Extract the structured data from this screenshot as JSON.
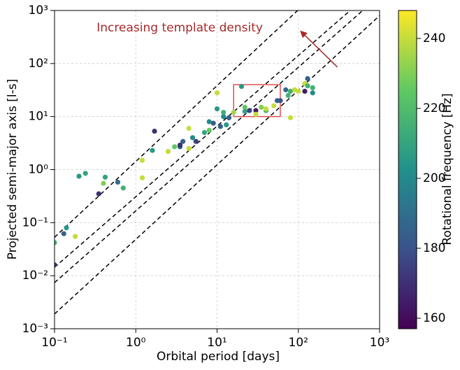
{
  "chart_data": {
    "type": "scatter",
    "xlabel": "Orbital period [days]",
    "ylabel": "Projected semi-major axis [l-s]",
    "xscale": "log",
    "yscale": "log",
    "xlim": [
      0.1,
      1000
    ],
    "ylim": [
      0.001,
      1000
    ],
    "xticks": [
      {
        "value": 0.1,
        "label": "10⁻¹"
      },
      {
        "value": 1,
        "label": "10⁰"
      },
      {
        "value": 10,
        "label": "10¹"
      },
      {
        "value": 100,
        "label": "10²"
      },
      {
        "value": 1000,
        "label": "10³"
      }
    ],
    "yticks": [
      {
        "value": 0.001,
        "label": "10⁻³"
      },
      {
        "value": 0.01,
        "label": "10⁻²"
      },
      {
        "value": 0.1,
        "label": "10⁻¹"
      },
      {
        "value": 1,
        "label": "10⁰"
      },
      {
        "value": 10,
        "label": "10¹"
      },
      {
        "value": 100,
        "label": "10²"
      },
      {
        "value": 1000,
        "label": "10³"
      }
    ],
    "grid": true,
    "colorbar": {
      "label": "Rotational frequency [Hz]",
      "lim": [
        157,
        248
      ],
      "ticks": [
        160,
        180,
        200,
        220,
        240
      ],
      "colormap": [
        "#440154",
        "#3b528b",
        "#21918c",
        "#5ec962",
        "#fde725"
      ]
    },
    "series": [
      {
        "x": [
          0.1,
          0.1,
          0.13,
          0.14,
          0.18,
          0.2,
          0.24,
          0.35,
          0.4,
          0.42,
          0.6,
          0.7,
          1.2,
          1.2,
          1.7,
          1.6,
          2.5,
          3,
          3.5,
          3.8,
          3.5,
          4.5,
          4.5,
          5,
          5.5,
          7,
          8,
          8,
          9,
          10,
          10,
          11,
          12,
          12,
          13,
          14,
          16,
          20,
          22,
          22,
          25,
          30,
          30,
          35,
          40,
          40,
          50,
          55,
          60,
          70,
          75,
          80,
          80,
          90,
          100,
          120,
          120,
          130,
          130,
          150,
          150
        ],
        "y": [
          0.042,
          0.016,
          0.062,
          0.08,
          0.055,
          0.75,
          0.85,
          0.35,
          0.55,
          0.72,
          0.58,
          0.45,
          1.5,
          0.7,
          5.3,
          2.3,
          2.2,
          2.7,
          2.7,
          3.4,
          2.9,
          6,
          2.5,
          4,
          3.4,
          5,
          8,
          5.5,
          7.5,
          14,
          28,
          6.5,
          10,
          12,
          7,
          9.5,
          12,
          37,
          15,
          12.5,
          13,
          13,
          11,
          15,
          13,
          14,
          16,
          20,
          20,
          32,
          25,
          9.5,
          30,
          32,
          30,
          30,
          42,
          52,
          38,
          28,
          35
        ],
        "c": [
          215,
          170,
          185,
          205,
          240,
          205,
          210,
          170,
          230,
          210,
          190,
          215,
          240,
          240,
          170,
          205,
          240,
          225,
          185,
          185,
          170,
          240,
          240,
          200,
          175,
          210,
          200,
          225,
          185,
          205,
          240,
          185,
          200,
          215,
          205,
          185,
          235,
          205,
          225,
          210,
          175,
          165,
          240,
          230,
          215,
          240,
          240,
          185,
          180,
          190,
          215,
          240,
          215,
          240,
          240,
          165,
          240,
          185,
          215,
          200,
          215
        ]
      }
    ],
    "lines": [
      {
        "x": [
          0.1,
          98
        ],
        "y": [
          0.053,
          1000
        ]
      },
      {
        "x": [
          0.1,
          435
        ],
        "y": [
          0.0144,
          1000
        ]
      },
      {
        "x": [
          0.1,
          620
        ],
        "y": [
          0.0074,
          1000
        ]
      },
      {
        "x": [
          0.1,
          1000
        ],
        "y": [
          0.0019,
          800
        ]
      }
    ],
    "box": {
      "x": [
        16,
        60
      ],
      "y": [
        10,
        40
      ],
      "color": "#e05050"
    },
    "annotation": {
      "text": "Increasing template density",
      "x": 0.33,
      "y": 470,
      "color": "#a52a2a",
      "arrow": {
        "from": [
          302,
          86
        ],
        "to": [
          108,
          400
        ]
      }
    }
  }
}
